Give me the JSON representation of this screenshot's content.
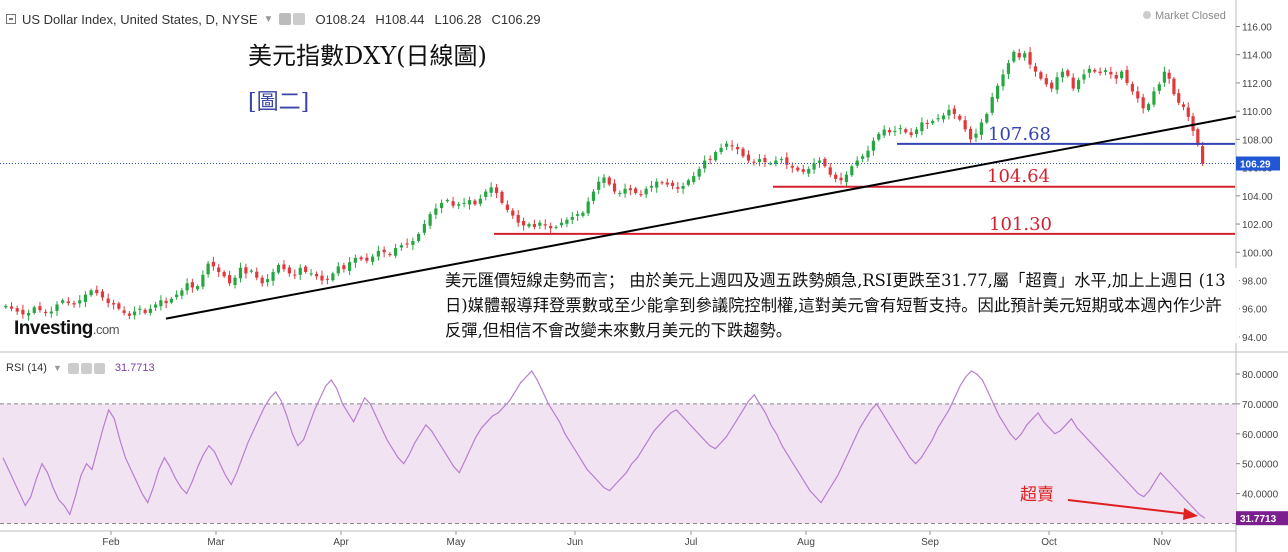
{
  "header": {
    "symbol_title": "US Dollar Index, United States, D, NYSE",
    "open": "O108.24",
    "high": "H108.44",
    "low": "L106.28",
    "close": "C106.29",
    "market_status": "Market Closed"
  },
  "annotation": {
    "title": "美元指數DXY(日線圖)",
    "subtitle": "[圖二]",
    "note": "美元匯價短線走勢而言； 由於美元上週四及週五跌勢頗急,RSI更跌至31.77,屬「超賣」水平,加上上週日 (13日)媒體報導拜登票數或至少能拿到參議院控制權,這對美元會有短暫支持。因此預計美元短期或本週內作少許反彈,但相信不會改變未來數月美元的下跌趨勢。",
    "oversold_label": "超賣",
    "logo_text": "Investing",
    "logo_suffix": ".com"
  },
  "rsi_header": {
    "label": "RSI (14)",
    "value": "31.7713"
  },
  "colors": {
    "up": "#26a641",
    "down": "#e0383b",
    "rsi": "#b77fd0",
    "rsi_band": "#f1e3f2",
    "support": "#d2202f",
    "resistance": "#3643b4",
    "trend": "#000000",
    "price_tag": "#2157d6",
    "rsi_tag": "#7b1f8f"
  },
  "chart_data": [
    {
      "type": "candlestick",
      "title": "US Dollar Index, United States, D, NYSE",
      "ylim": [
        93.5,
        116.6
      ],
      "y_ticks": [
        "116.00",
        "114.00",
        "112.00",
        "110.00",
        "108.00",
        "106.00",
        "104.00",
        "102.00",
        "100.00",
        "98.00",
        "96.00",
        "94.00"
      ],
      "x_ticks": [
        "Feb",
        "Mar",
        "Apr",
        "May",
        "Jun",
        "Jul",
        "Aug",
        "Sep",
        "Oct",
        "Nov"
      ],
      "last_price": "106.29",
      "close_series": [
        {
          "month": "Jan",
          "close": [
            96.2,
            96.0,
            95.8,
            95.6,
            95.7,
            96.1,
            95.9,
            95.7,
            95.8,
            96.3,
            96.6,
            96.4,
            96.3,
            96.6,
            97.0,
            97.3,
            97.1,
            96.8,
            96.4
          ]
        },
        {
          "month": "Feb",
          "close": [
            96.3,
            96.0,
            95.7,
            95.5,
            95.8,
            96.0,
            95.7,
            96.0,
            96.3,
            96.6,
            96.4,
            96.7,
            97.0,
            97.3,
            97.8,
            97.5,
            97.6,
            98.4,
            99.2,
            99.0
          ]
        },
        {
          "month": "Mar",
          "close": [
            98.6,
            98.3,
            97.8,
            98.2,
            98.9,
            98.5,
            98.7,
            98.2,
            97.8,
            98.1,
            98.6,
            99.1,
            98.8,
            98.5,
            98.4,
            98.9,
            98.6,
            98.5,
            98.3,
            98.0,
            98.1,
            98.5,
            99.0
          ]
        },
        {
          "month": "Apr",
          "close": [
            98.8,
            99.3,
            99.6,
            99.5,
            99.4,
            99.7,
            100.1,
            100.0,
            99.8,
            100.3,
            100.5,
            100.6,
            100.8,
            101.3,
            102.0,
            102.7,
            103.1,
            103.5,
            103.7,
            103.3
          ]
        },
        {
          "month": "May",
          "close": [
            103.4,
            103.5,
            103.7,
            103.4,
            103.8,
            104.3,
            104.6,
            104.2,
            103.5,
            103.0,
            102.6,
            102.1,
            101.9,
            102.0,
            101.8,
            102.1,
            101.9,
            101.7,
            101.8,
            102.1,
            102.3,
            102.5
          ]
        },
        {
          "month": "Jun",
          "close": [
            102.7,
            102.8,
            103.6,
            104.3,
            105.0,
            105.3,
            104.8,
            104.3,
            104.2,
            104.5,
            104.4,
            104.2,
            104.1,
            104.5,
            104.7,
            105.0,
            104.9,
            104.8,
            104.7,
            104.5,
            104.7,
            105.1
          ]
        },
        {
          "month": "Jul",
          "close": [
            105.4,
            105.9,
            106.5,
            106.6,
            107.1,
            107.4,
            107.7,
            107.5,
            107.3,
            106.8,
            106.5,
            106.4,
            106.6,
            106.4,
            106.3,
            106.5,
            106.6,
            106.2,
            106.0,
            105.8,
            105.7
          ]
        },
        {
          "month": "Aug",
          "close": [
            105.9,
            106.3,
            106.5,
            106.1,
            105.5,
            105.2,
            105.1,
            105.5,
            106.1,
            106.5,
            106.8,
            107.2,
            107.9,
            108.4,
            108.7,
            108.5,
            108.6,
            108.8,
            108.5,
            108.3,
            108.7,
            109.2,
            109.1
          ]
        },
        {
          "month": "Sep",
          "close": [
            109.3,
            109.5,
            109.7,
            110.1,
            109.8,
            109.4,
            108.7,
            108.0,
            108.4,
            109.2,
            109.8,
            111.0,
            111.8,
            112.6,
            113.4,
            114.2,
            113.8,
            114.1,
            113.3,
            112.8,
            112.3,
            111.9
          ]
        },
        {
          "month": "Oct",
          "close": [
            111.6,
            112.4,
            112.8,
            112.5,
            111.6,
            112.2,
            112.6,
            113.0,
            112.8,
            112.7,
            112.9,
            112.6,
            112.3,
            112.8,
            112.0,
            111.4,
            110.9,
            110.2,
            110.5,
            111.4,
            111.9
          ]
        },
        {
          "month": "Nov",
          "close": [
            112.8,
            112.3,
            111.2,
            110.6,
            110.3,
            109.6,
            108.6,
            107.6,
            106.29
          ]
        }
      ]
    },
    {
      "type": "line",
      "title": "RSI (14)",
      "ylim": [
        30.5,
        83
      ],
      "y_ticks": [
        "80.0000",
        "70.0000",
        "60.0000",
        "50.0000",
        "40.0000"
      ],
      "band": [
        30,
        70
      ],
      "last_value": "31.7713",
      "values": [
        52,
        48,
        44,
        40,
        36,
        39,
        45,
        50,
        47,
        42,
        38,
        36,
        33,
        39,
        46,
        50,
        48,
        55,
        62,
        68,
        65,
        58,
        52,
        48,
        44,
        40,
        37,
        42,
        48,
        52,
        49,
        45,
        42,
        40,
        44,
        49,
        53,
        56,
        54,
        50,
        46,
        43,
        47,
        52,
        57,
        61,
        65,
        69,
        72,
        74,
        71,
        66,
        60,
        56,
        58,
        63,
        68,
        72,
        76,
        78,
        75,
        70,
        67,
        64,
        68,
        72,
        70,
        66,
        62,
        58,
        55,
        52,
        50,
        53,
        57,
        60,
        63,
        61,
        58,
        55,
        52,
        49,
        47,
        51,
        55,
        59,
        62,
        64,
        66,
        67,
        69,
        71,
        74,
        77,
        79,
        81,
        78,
        74,
        70,
        67,
        64,
        60,
        57,
        54,
        51,
        48,
        46,
        44,
        42,
        41,
        43,
        45,
        47,
        50,
        52,
        55,
        58,
        61,
        63,
        65,
        67,
        68,
        66,
        64,
        62,
        60,
        58,
        56,
        55,
        57,
        59,
        62,
        65,
        68,
        71,
        73,
        70,
        67,
        63,
        60,
        56,
        53,
        50,
        47,
        44,
        41,
        39,
        37,
        40,
        43,
        46,
        50,
        54,
        58,
        62,
        65,
        68,
        70,
        67,
        64,
        61,
        58,
        55,
        52,
        50,
        52,
        55,
        58,
        62,
        65,
        68,
        72,
        76,
        79,
        81,
        80,
        78,
        74,
        70,
        66,
        63,
        60,
        58,
        60,
        63,
        65,
        67,
        64,
        62,
        60,
        61,
        63,
        65,
        62,
        60,
        58,
        56,
        54,
        52,
        50,
        48,
        46,
        44,
        42,
        40,
        39,
        41,
        44,
        47,
        45,
        43,
        41,
        39,
        37,
        35,
        33,
        31.77
      ]
    }
  ],
  "levels": [
    {
      "label": "107.68",
      "value": 107.68
    },
    {
      "label": "104.64",
      "value": 104.64
    },
    {
      "label": "101.30",
      "value": 101.3
    }
  ]
}
